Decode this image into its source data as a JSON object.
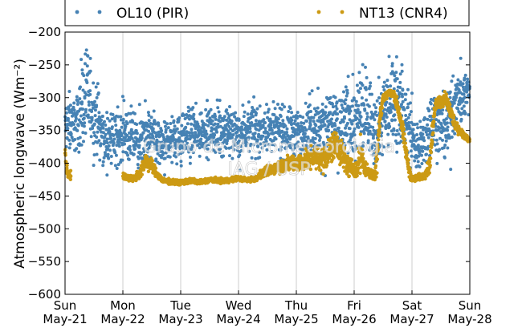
{
  "chart_data": {
    "type": "scatter",
    "ylabel": "Atmospheric longwave (Wm⁻²)",
    "ylim": [
      -600,
      -200
    ],
    "yticks": [
      -200,
      -250,
      -300,
      -350,
      -400,
      -450,
      -500,
      -550,
      -600
    ],
    "ytick_labels": [
      "−200",
      "−250",
      "−300",
      "−350",
      "−400",
      "−450",
      "−500",
      "−550",
      "−600"
    ],
    "xlim": [
      0,
      7
    ],
    "xticks": [
      {
        "day": "Sun",
        "date": "May-21"
      },
      {
        "day": "Mon",
        "date": "May-22"
      },
      {
        "day": "Tue",
        "date": "May-23"
      },
      {
        "day": "Wed",
        "date": "May-24"
      },
      {
        "day": "Thu",
        "date": "May-25"
      },
      {
        "day": "Fri",
        "date": "May-26"
      },
      {
        "day": "Sat",
        "date": "May-27"
      },
      {
        "day": "Sun",
        "date": "May-28"
      }
    ],
    "grid": "vertical",
    "legend_position": "top",
    "watermark": [
      "Grupo de Micrometeorologia",
      "IAG / USP"
    ],
    "series": [
      {
        "name": "OL10 (PIR)",
        "color": "#4682b4",
        "x": [
          0.0,
          0.1,
          0.2,
          0.3,
          0.4,
          0.5,
          0.6,
          0.7,
          0.8,
          0.9,
          1.0,
          1.1,
          1.2,
          1.3,
          1.4,
          1.5,
          1.6,
          1.7,
          1.8,
          1.9,
          2.0,
          2.1,
          2.2,
          2.3,
          2.4,
          2.5,
          2.6,
          2.7,
          2.8,
          2.9,
          3.0,
          3.1,
          3.2,
          3.3,
          3.4,
          3.5,
          3.6,
          3.7,
          3.8,
          3.9,
          4.0,
          4.1,
          4.2,
          4.3,
          4.4,
          4.5,
          4.6,
          4.7,
          4.8,
          4.9,
          5.0,
          5.1,
          5.2,
          5.3,
          5.4,
          5.5,
          5.6,
          5.7,
          5.8,
          5.9,
          6.0,
          6.1,
          6.2,
          6.3,
          6.4,
          6.5,
          6.6,
          6.7,
          6.8,
          6.9,
          7.0
        ],
        "y": [
          -345,
          -335,
          -340,
          -310,
          -300,
          -325,
          -345,
          -370,
          -360,
          -365,
          -350,
          -360,
          -365,
          -375,
          -355,
          -360,
          -370,
          -375,
          -360,
          -360,
          -365,
          -355,
          -350,
          -355,
          -345,
          -350,
          -345,
          -355,
          -350,
          -355,
          -355,
          -350,
          -345,
          -350,
          -355,
          -345,
          -350,
          -350,
          -355,
          -350,
          -355,
          -350,
          -340,
          -345,
          -345,
          -340,
          -335,
          -345,
          -340,
          -330,
          -340,
          -330,
          -320,
          -335,
          -345,
          -325,
          -315,
          -300,
          -305,
          -345,
          -355,
          -385,
          -370,
          -345,
          -330,
          -340,
          -355,
          -315,
          -305,
          -295,
          -290
        ],
        "spread": [
          18,
          22,
          20,
          30,
          32,
          28,
          22,
          20,
          18,
          20,
          20,
          22,
          20,
          20,
          18,
          20,
          20,
          18,
          18,
          18,
          18,
          18,
          18,
          18,
          18,
          18,
          18,
          18,
          18,
          18,
          18,
          18,
          18,
          18,
          18,
          18,
          18,
          18,
          18,
          18,
          20,
          20,
          22,
          22,
          24,
          24,
          26,
          28,
          28,
          28,
          30,
          30,
          32,
          30,
          28,
          30,
          32,
          35,
          30,
          28,
          25,
          22,
          22,
          22,
          24,
          24,
          25,
          25,
          22,
          22,
          22
        ]
      },
      {
        "name": "NT13 (CNR4)",
        "color": "#cc9a14",
        "x": [
          0.0,
          0.03,
          0.05,
          0.1,
          0.2,
          0.3,
          0.4,
          0.5,
          0.6,
          0.7,
          0.8,
          0.9,
          0.95,
          1.0,
          1.1,
          1.2,
          1.3,
          1.4,
          1.5,
          1.6,
          1.7,
          1.8,
          1.9,
          2.0,
          2.1,
          2.2,
          2.3,
          2.4,
          2.5,
          2.6,
          2.7,
          2.8,
          2.9,
          3.0,
          3.1,
          3.2,
          3.3,
          3.4,
          3.5,
          3.6,
          3.7,
          3.8,
          3.9,
          4.0,
          4.1,
          4.2,
          4.3,
          4.4,
          4.5,
          4.6,
          4.7,
          4.8,
          4.9,
          5.0,
          5.05,
          5.1,
          5.2,
          5.3,
          5.35,
          5.4,
          5.45,
          5.5,
          5.6,
          5.7,
          5.8,
          5.9,
          5.95,
          6.0,
          6.1,
          6.2,
          6.3,
          6.35,
          6.4,
          6.5,
          6.6,
          6.7,
          6.8,
          6.9,
          7.0
        ],
        "y": [
          -385,
          -410,
          -418,
          -418,
          null,
          null,
          null,
          null,
          null,
          null,
          null,
          null,
          null,
          -420,
          -422,
          -423,
          -415,
          -395,
          -405,
          -418,
          -427,
          -428,
          -429,
          -429,
          -428,
          -427,
          -429,
          -428,
          -425,
          -426,
          -427,
          -426,
          -425,
          -423,
          -425,
          -425,
          -424,
          -416,
          -412,
          -408,
          -405,
          -402,
          -400,
          -400,
          -398,
          -395,
          -390,
          -395,
          -390,
          -380,
          -370,
          -388,
          -405,
          -408,
          -413,
          -380,
          -410,
          -418,
          -420,
          -380,
          -330,
          -300,
          -293,
          -297,
          -330,
          -385,
          -410,
          -425,
          -422,
          -420,
          -405,
          -360,
          -310,
          -305,
          -305,
          -330,
          -348,
          -358,
          -365
        ],
        "spread": [
          8,
          8,
          6,
          6,
          0,
          0,
          0,
          0,
          0,
          0,
          0,
          0,
          0,
          4,
          4,
          4,
          8,
          10,
          8,
          5,
          3,
          3,
          3,
          3,
          3,
          3,
          3,
          3,
          3,
          3,
          3,
          3,
          3,
          3,
          3,
          3,
          3,
          5,
          6,
          7,
          8,
          9,
          10,
          10,
          12,
          12,
          14,
          14,
          16,
          18,
          20,
          16,
          12,
          10,
          8,
          22,
          8,
          6,
          8,
          25,
          12,
          6,
          5,
          6,
          12,
          10,
          8,
          4,
          4,
          4,
          10,
          14,
          8,
          8,
          10,
          8,
          6,
          5,
          5
        ]
      }
    ]
  }
}
